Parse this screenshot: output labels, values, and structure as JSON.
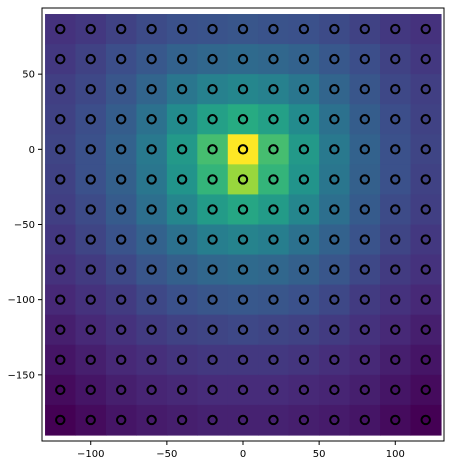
{
  "chart_data": {
    "type": "heatmap",
    "title": "",
    "xlabel": "",
    "ylabel": "",
    "xlim": [
      -132,
      132
    ],
    "ylim": [
      -194,
      94
    ],
    "grid": false,
    "legend": "none",
    "x": [
      -120,
      -100,
      -80,
      -60,
      -40,
      -20,
      0,
      20,
      40,
      60,
      80,
      100,
      120
    ],
    "y": [
      80,
      60,
      40,
      20,
      0,
      -20,
      -40,
      -60,
      -80,
      -100,
      -120,
      -140,
      -160,
      -180
    ],
    "z": [
      [
        0.15,
        0.17,
        0.2,
        0.23,
        0.25,
        0.26,
        0.27,
        0.26,
        0.25,
        0.23,
        0.2,
        0.17,
        0.15
      ],
      [
        0.17,
        0.2,
        0.24,
        0.28,
        0.32,
        0.34,
        0.35,
        0.34,
        0.32,
        0.28,
        0.24,
        0.2,
        0.17
      ],
      [
        0.19,
        0.22,
        0.27,
        0.33,
        0.4,
        0.44,
        0.46,
        0.44,
        0.4,
        0.33,
        0.27,
        0.22,
        0.19
      ],
      [
        0.2,
        0.24,
        0.3,
        0.38,
        0.48,
        0.57,
        0.62,
        0.57,
        0.48,
        0.38,
        0.3,
        0.24,
        0.2
      ],
      [
        0.21,
        0.25,
        0.32,
        0.41,
        0.54,
        0.7,
        1.0,
        0.7,
        0.54,
        0.41,
        0.32,
        0.25,
        0.21
      ],
      [
        0.2,
        0.25,
        0.31,
        0.4,
        0.52,
        0.66,
        0.85,
        0.66,
        0.52,
        0.4,
        0.31,
        0.25,
        0.2
      ],
      [
        0.19,
        0.23,
        0.29,
        0.37,
        0.46,
        0.55,
        0.6,
        0.55,
        0.46,
        0.37,
        0.29,
        0.23,
        0.19
      ],
      [
        0.17,
        0.21,
        0.26,
        0.32,
        0.38,
        0.43,
        0.45,
        0.43,
        0.38,
        0.32,
        0.26,
        0.21,
        0.17
      ],
      [
        0.15,
        0.18,
        0.22,
        0.27,
        0.31,
        0.34,
        0.35,
        0.34,
        0.31,
        0.27,
        0.22,
        0.18,
        0.15
      ],
      [
        0.12,
        0.15,
        0.18,
        0.22,
        0.25,
        0.27,
        0.28,
        0.27,
        0.25,
        0.22,
        0.18,
        0.15,
        0.12
      ],
      [
        0.09,
        0.12,
        0.15,
        0.18,
        0.2,
        0.21,
        0.22,
        0.21,
        0.2,
        0.18,
        0.15,
        0.12,
        0.09
      ],
      [
        0.06,
        0.09,
        0.12,
        0.14,
        0.16,
        0.17,
        0.17,
        0.17,
        0.16,
        0.14,
        0.12,
        0.09,
        0.06
      ],
      [
        0.03,
        0.06,
        0.09,
        0.11,
        0.12,
        0.13,
        0.13,
        0.13,
        0.12,
        0.11,
        0.09,
        0.06,
        0.03
      ],
      [
        0.0,
        0.03,
        0.06,
        0.08,
        0.09,
        0.1,
        0.1,
        0.1,
        0.09,
        0.08,
        0.06,
        0.03,
        0.0
      ]
    ],
    "colormap": "viridis",
    "x_ticks": [
      "−100",
      "−50",
      "0",
      "50",
      "100"
    ],
    "x_tick_values": [
      -100,
      -50,
      0,
      50,
      100
    ],
    "y_ticks": [
      "50",
      "0",
      "−50",
      "−100",
      "−150"
    ],
    "y_tick_values": [
      50,
      0,
      -50,
      -100,
      -150
    ],
    "marker": {
      "style": "open-circle",
      "edge_color": "#000000"
    }
  }
}
